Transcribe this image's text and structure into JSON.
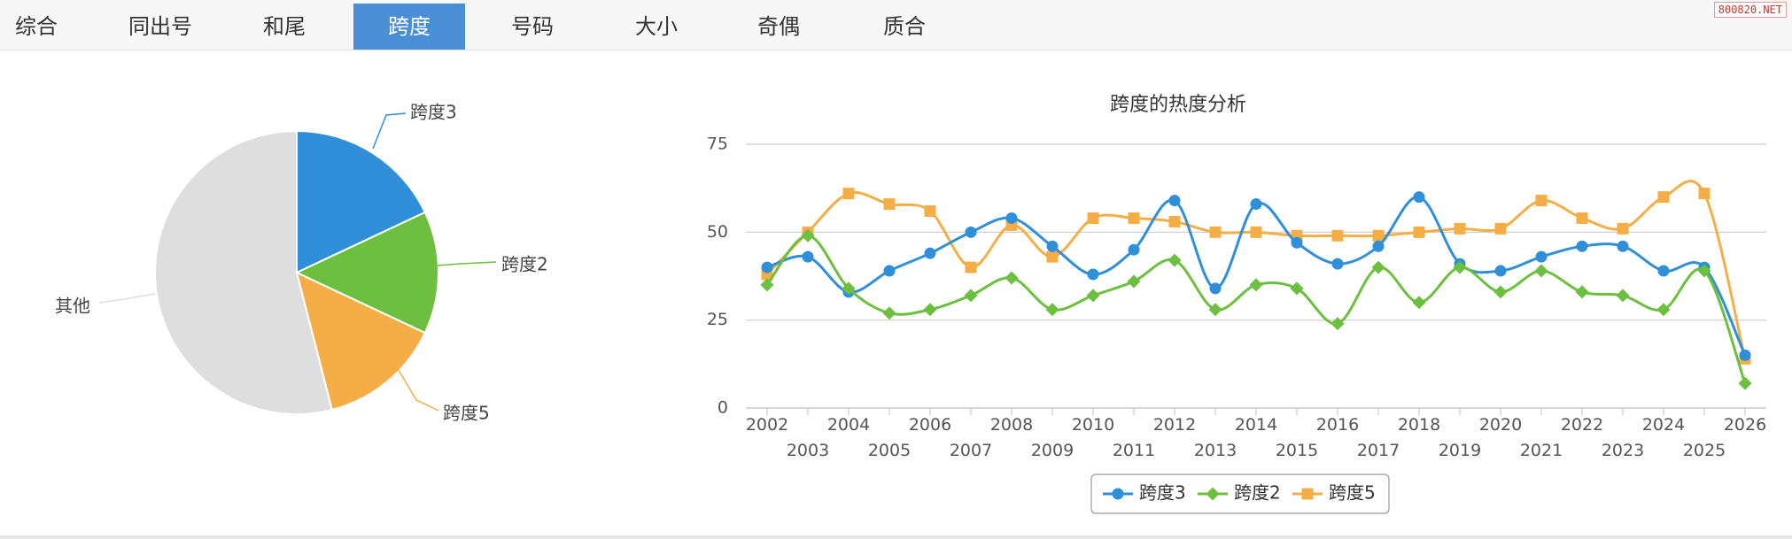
{
  "tabs": [
    {
      "label": "综合",
      "active": false
    },
    {
      "label": "同出号",
      "active": false
    },
    {
      "label": "和尾",
      "active": false
    },
    {
      "label": "跨度",
      "active": true
    },
    {
      "label": "号码",
      "active": false
    },
    {
      "label": "大小",
      "active": false
    },
    {
      "label": "奇偶",
      "active": false
    },
    {
      "label": "质合",
      "active": false
    }
  ],
  "watermark": "800820.NET",
  "colors": {
    "span3": "#2f8fd8",
    "span2": "#6cbf3f",
    "span5": "#f5ae45",
    "other": "#dedede",
    "accent": "#4a8fd6"
  },
  "chart_data": [
    {
      "type": "pie",
      "title": "",
      "slices": [
        {
          "name": "跨度3",
          "value": 18
        },
        {
          "name": "跨度2",
          "value": 14
        },
        {
          "name": "跨度5",
          "value": 14
        },
        {
          "name": "其他",
          "value": 54
        }
      ]
    },
    {
      "type": "line",
      "title": "跨度的热度分析",
      "xlabel": "",
      "ylabel": "",
      "ylim": [
        0,
        75
      ],
      "yticks": [
        "0",
        "25",
        "50",
        "75"
      ],
      "grid": true,
      "legend": "bottom-center",
      "x": [
        "2002",
        "2003",
        "2004",
        "2005",
        "2006",
        "2007",
        "2008",
        "2009",
        "2010",
        "2011",
        "2012",
        "2013",
        "2014",
        "2015",
        "2016",
        "2017",
        "2018",
        "2019",
        "2020",
        "2021",
        "2022",
        "2023",
        "2024",
        "2025",
        "2026"
      ],
      "series": [
        {
          "name": "跨度3",
          "marker": "circle",
          "values": [
            40,
            43,
            33,
            39,
            44,
            50,
            54,
            46,
            38,
            45,
            59,
            34,
            58,
            47,
            41,
            46,
            60,
            41,
            39,
            43,
            46,
            46,
            39,
            40,
            15
          ]
        },
        {
          "name": "跨度2",
          "marker": "diamond",
          "values": [
            35,
            49,
            34,
            27,
            28,
            32,
            37,
            28,
            32,
            36,
            42,
            28,
            35,
            34,
            24,
            40,
            30,
            40,
            33,
            39,
            33,
            32,
            28,
            39,
            7
          ]
        },
        {
          "name": "跨度5",
          "marker": "square",
          "values": [
            38,
            50,
            61,
            58,
            56,
            40,
            52,
            43,
            54,
            54,
            53,
            50,
            50,
            49,
            49,
            49,
            50,
            51,
            51,
            59,
            54,
            51,
            60,
            61,
            14
          ]
        }
      ]
    }
  ]
}
